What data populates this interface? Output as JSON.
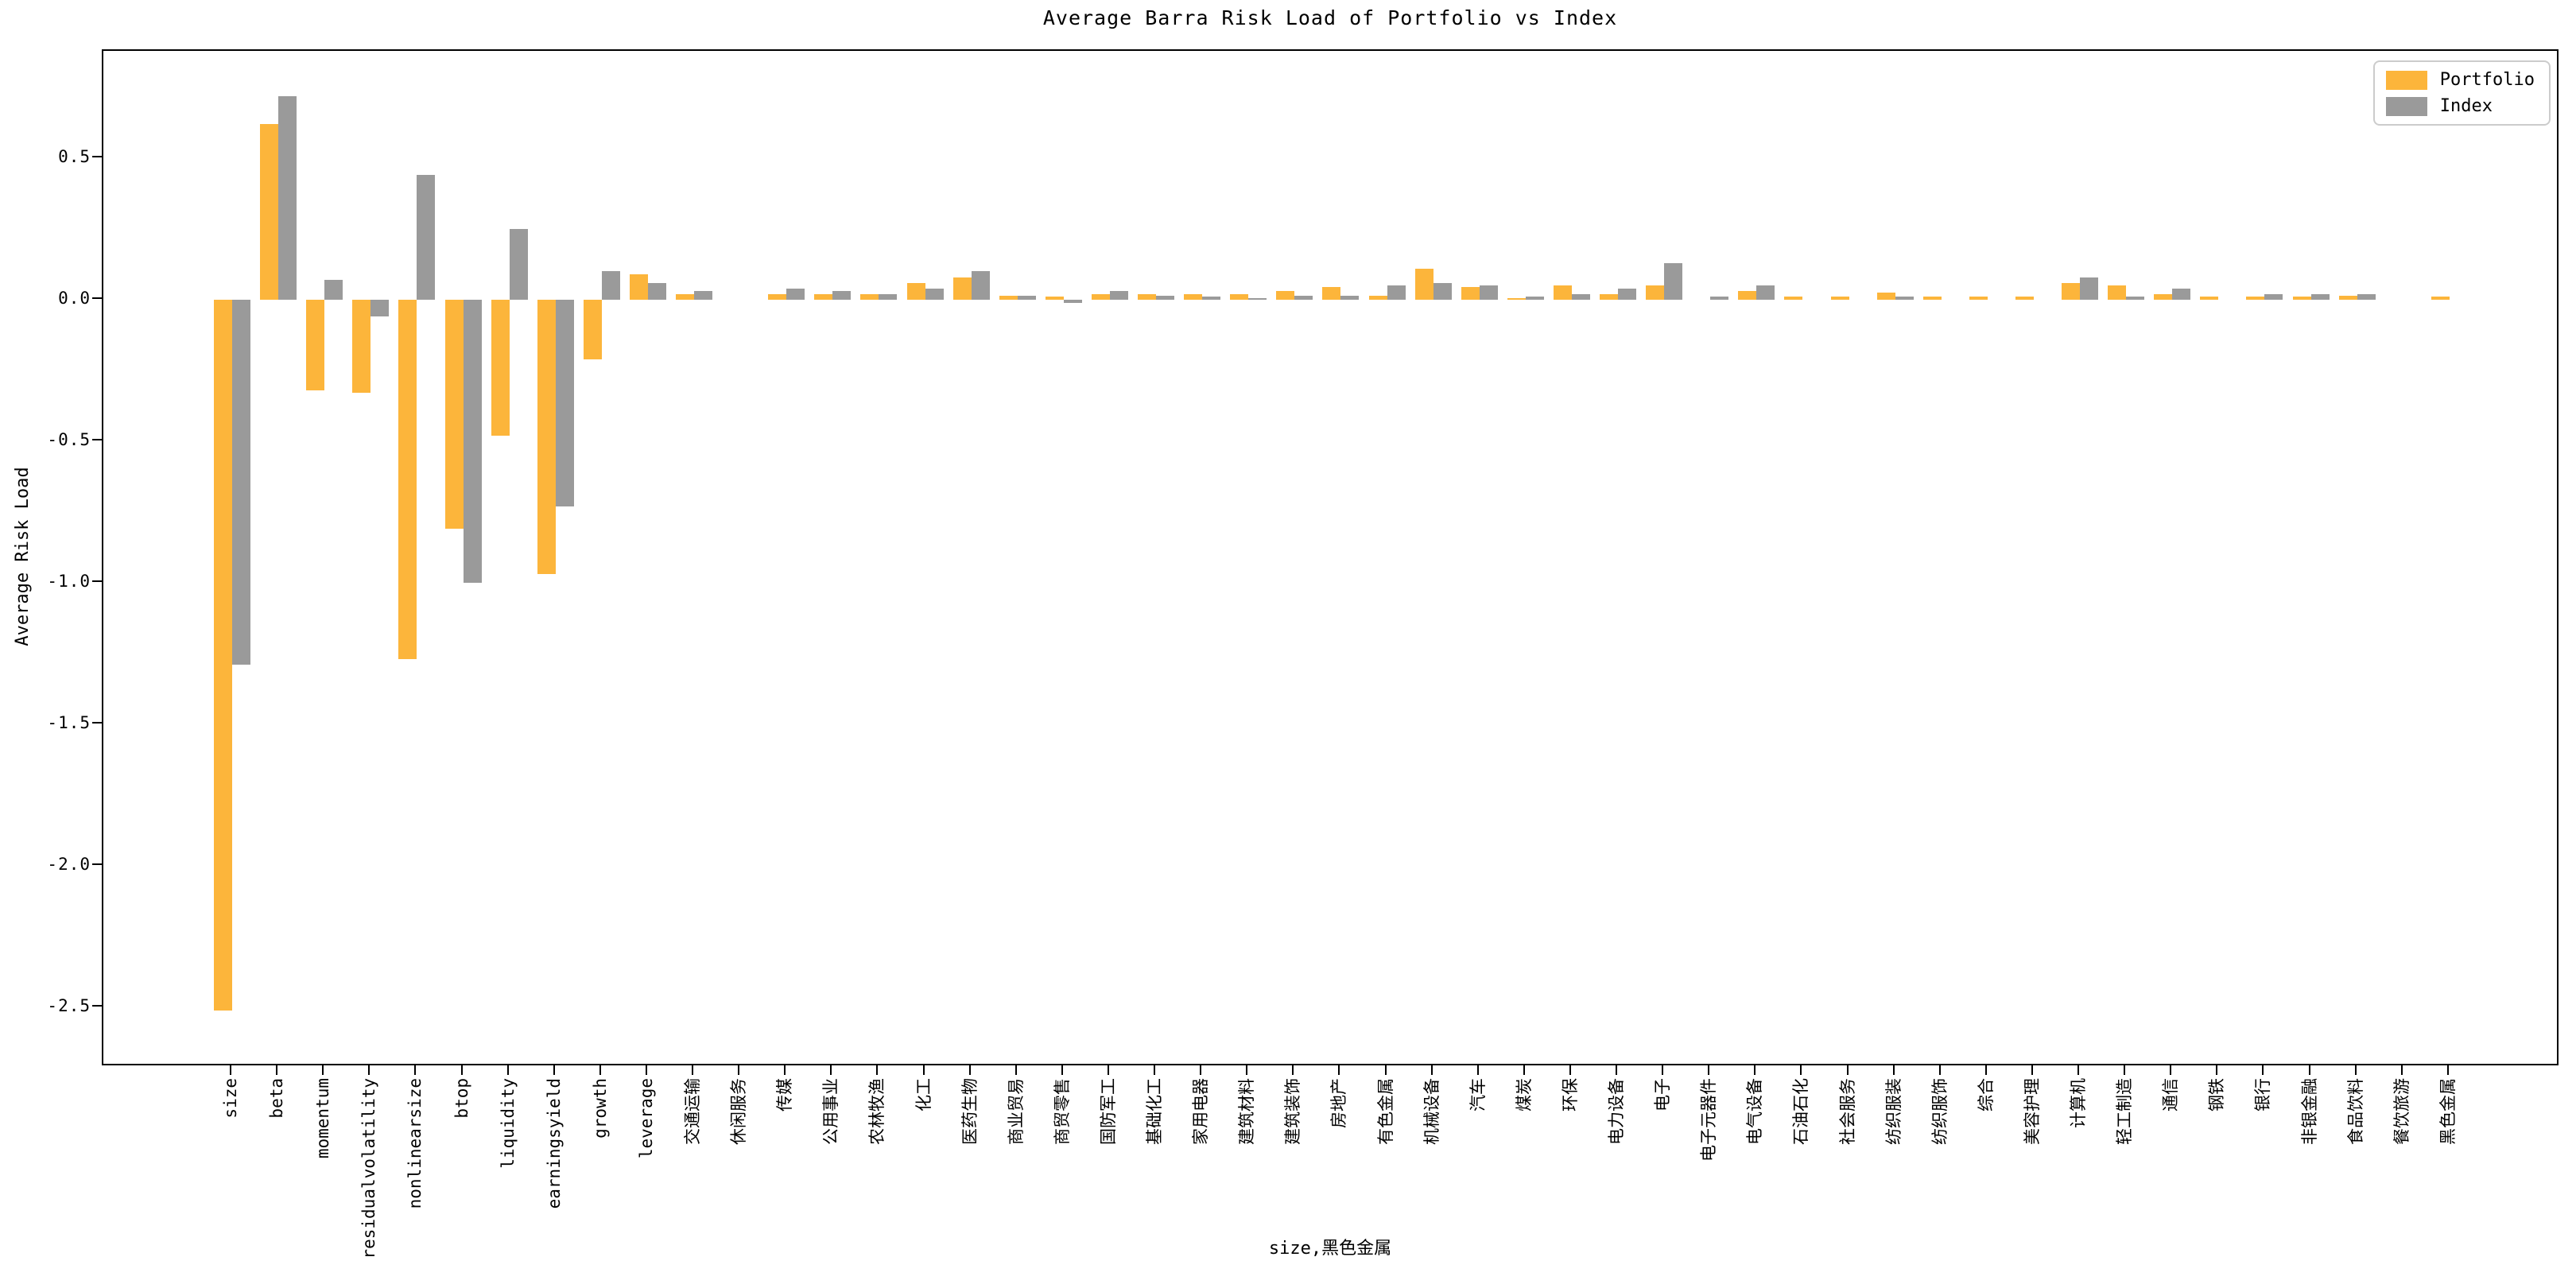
{
  "title": "Average Barra Risk Load of Portfolio vs Index",
  "ylabel": "Average Risk Load",
  "xlabel": "size,黑色金属",
  "legend": {
    "portfolio_label": "Portfolio",
    "index_label": "Index"
  },
  "colors": {
    "portfolio": "#FCB53B",
    "index": "#9A9A9A",
    "spine": "#000000",
    "legend_border": "#cccccc"
  },
  "chart_data": {
    "type": "bar",
    "title": "Average Barra Risk Load of Portfolio vs Index",
    "xlabel": "size,黑色金属",
    "ylabel": "Average Risk Load",
    "ylim": [
      -2.71,
      0.88
    ],
    "yticks": [
      0.5,
      0.0,
      -0.5,
      -1.0,
      -1.5,
      -2.0,
      -2.5
    ],
    "ytick_labels": [
      "0.5",
      "0.0",
      "-0.5",
      "-1.0",
      "-1.5",
      "-2.0",
      "-2.5"
    ],
    "grid": false,
    "legend_position": "upper right",
    "bar_orientation": "vertical",
    "categories": [
      "size",
      "beta",
      "momentum",
      "residualvolatility",
      "nonlinearsize",
      "btop",
      "liquidity",
      "earningsyield",
      "growth",
      "leverage",
      "交通运输",
      "休闲服务",
      "传媒",
      "公用事业",
      "农林牧渔",
      "化工",
      "医药生物",
      "商业贸易",
      "商贸零售",
      "国防军工",
      "基础化工",
      "家用电器",
      "建筑材料",
      "建筑装饰",
      "房地产",
      "有色金属",
      "机械设备",
      "汽车",
      "煤炭",
      "环保",
      "电力设备",
      "电子",
      "电子元器件",
      "电气设备",
      "石油石化",
      "社会服务",
      "纺织服装",
      "纺织服饰",
      "综合",
      "美容护理",
      "计算机",
      "轻工制造",
      "通信",
      "钢铁",
      "银行",
      "非银金融",
      "食品饮料",
      "餐饮旅游",
      "黑色金属"
    ],
    "series": [
      {
        "name": "Portfolio",
        "color": "#FCB53B",
        "values": [
          -2.51,
          0.62,
          -0.32,
          -0.33,
          -1.27,
          -0.81,
          -0.48,
          -0.97,
          -0.21,
          0.09,
          0.02,
          0.0,
          0.02,
          0.02,
          0.02,
          0.06,
          0.08,
          0.015,
          0.01,
          0.02,
          0.02,
          0.02,
          0.02,
          0.03,
          0.045,
          0.015,
          0.11,
          0.045,
          0.005,
          0.05,
          0.02,
          0.05,
          0.0,
          0.03,
          0.01,
          0.01,
          0.025,
          0.01,
          0.01,
          0.01,
          0.06,
          0.05,
          0.02,
          0.01,
          0.01,
          0.01,
          0.015,
          0.0,
          0.01
        ]
      },
      {
        "name": "Index",
        "color": "#9A9A9A",
        "values": [
          -1.29,
          0.72,
          0.07,
          -0.06,
          0.44,
          -1.0,
          0.25,
          -0.73,
          0.1,
          0.06,
          0.03,
          0.0,
          0.04,
          0.03,
          0.02,
          0.04,
          0.1,
          0.015,
          -0.01,
          0.03,
          0.015,
          0.01,
          0.005,
          0.015,
          0.015,
          0.05,
          0.06,
          0.05,
          0.01,
          0.02,
          0.04,
          0.13,
          0.01,
          0.05,
          0.0,
          0.0,
          0.01,
          0.0,
          0.0,
          0.0,
          0.08,
          0.01,
          0.04,
          0.0,
          0.02,
          0.02,
          0.02,
          0.0,
          0.0
        ]
      }
    ]
  }
}
